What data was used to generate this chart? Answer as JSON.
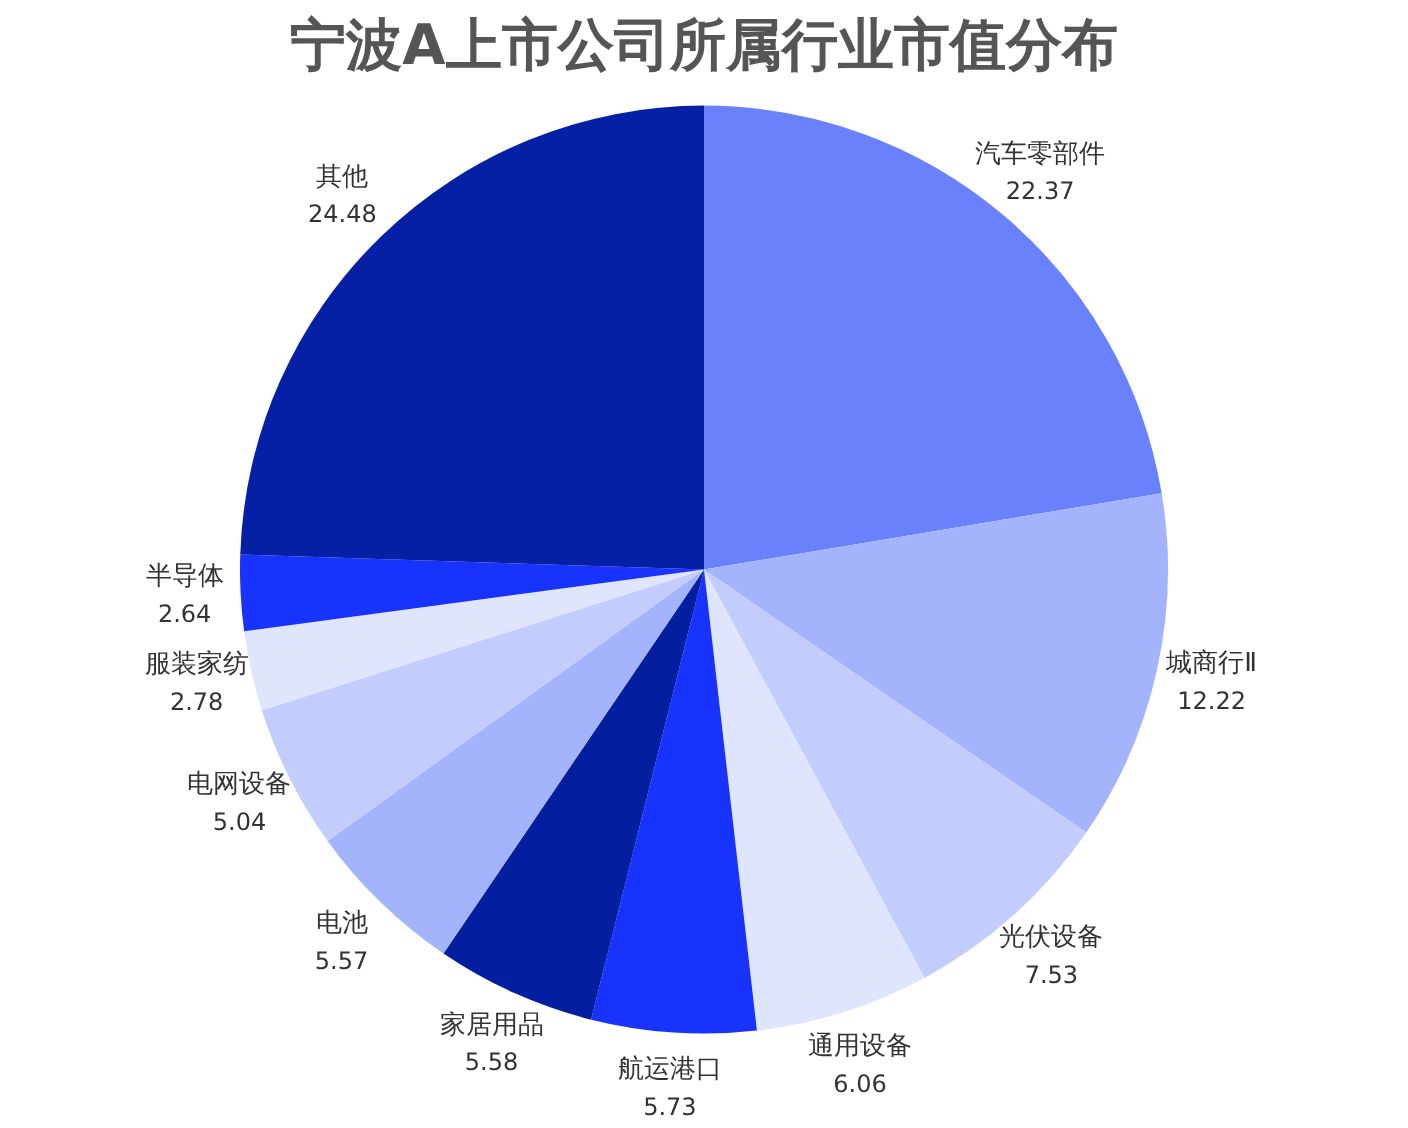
{
  "chart_data": {
    "type": "pie",
    "title": "宁波A上市公司所属行业市值分布",
    "categories": [
      "汽车零部件",
      "城商行Ⅱ",
      "光伏设备",
      "通用设备",
      "航运港口",
      "家居用品",
      "电池",
      "电网设备",
      "服装家纺",
      "半导体",
      "其他"
    ],
    "values": [
      22.37,
      12.22,
      7.53,
      6.06,
      5.73,
      5.58,
      5.57,
      5.04,
      2.78,
      2.64,
      24.48
    ],
    "colors": [
      "#6982fc",
      "#a3b4fd",
      "#c2cdfd",
      "#e0e5fe",
      "#1733fc",
      "#041ea0",
      "#a3b4fd",
      "#c2cdfd",
      "#e0e5fe",
      "#1733fc",
      "#0520a5"
    ],
    "data_labels": true,
    "legend": false
  }
}
